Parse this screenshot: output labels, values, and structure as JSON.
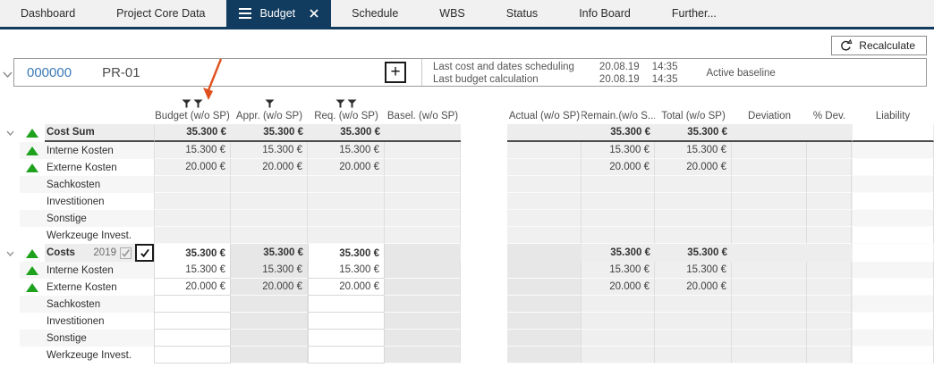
{
  "colors": {
    "accent": "#113c5f",
    "link_blue": "#3a79b8",
    "trend_green": "#1ea21e",
    "annotation_arrow": "#e0501f"
  },
  "tabs": {
    "items": [
      {
        "label": "Dashboard",
        "active": false
      },
      {
        "label": "Project Core Data",
        "active": false
      },
      {
        "label": "Budget",
        "active": true
      },
      {
        "label": "Schedule",
        "active": false
      },
      {
        "label": "WBS",
        "active": false
      },
      {
        "label": "Status",
        "active": false
      },
      {
        "label": "Info Board",
        "active": false
      },
      {
        "label": "Further...",
        "active": false
      }
    ]
  },
  "toolbar": {
    "recalculate_label": "Recalculate"
  },
  "project_header": {
    "id": "000000",
    "code": "PR-01",
    "add_button": "+",
    "info": [
      {
        "label": "Last cost and dates scheduling",
        "date": "20.08.19",
        "time": "14:35"
      },
      {
        "label": "Last budget calculation",
        "date": "20.08.19",
        "time": "14:35"
      }
    ],
    "baseline": "Active baseline"
  },
  "table": {
    "columns": [
      {
        "key": "budget",
        "label": "Budget (w/o SP)",
        "filters": 2
      },
      {
        "key": "appr",
        "label": "Appr. (w/o SP)",
        "filters": 1
      },
      {
        "key": "req",
        "label": "Req. (w/o SP)",
        "filters": 2
      },
      {
        "key": "basel",
        "label": "Basel. (w/o SP)",
        "filters": 0
      },
      {
        "key": "gap",
        "label": "",
        "filters": 0
      },
      {
        "key": "actual",
        "label": "Actual (w/o SP)",
        "filters": 0
      },
      {
        "key": "remain",
        "label": "Remain.(w/o S...",
        "filters": 0
      },
      {
        "key": "total",
        "label": "Total (w/o SP)",
        "filters": 0
      },
      {
        "key": "deviation",
        "label": "Deviation",
        "filters": 0
      },
      {
        "key": "pdev",
        "label": "% Dev.",
        "filters": 0
      },
      {
        "key": "liability",
        "label": "Liability",
        "filters": 0
      }
    ],
    "groups": [
      {
        "label": "Cost Sum",
        "year": "",
        "has_checkboxes": false,
        "trend": true,
        "values": {
          "budget": "35.300 €",
          "appr": "35.300 €",
          "req": "35.300 €",
          "basel": "",
          "actual": "",
          "remain": "35.300 €",
          "total": "35.300 €",
          "deviation": "",
          "pdev": "",
          "liability": ""
        },
        "rows": [
          {
            "label": "Interne Kosten",
            "trend": true,
            "budget": "15.300 €",
            "appr": "15.300 €",
            "req": "15.300 €",
            "basel": "",
            "actual": "",
            "remain": "15.300 €",
            "total": "15.300 €",
            "deviation": "",
            "pdev": "",
            "liability": ""
          },
          {
            "label": "Externe Kosten",
            "trend": true,
            "budget": "20.000 €",
            "appr": "20.000 €",
            "req": "20.000 €",
            "basel": "",
            "actual": "",
            "remain": "20.000 €",
            "total": "20.000 €",
            "deviation": "",
            "pdev": "",
            "liability": ""
          },
          {
            "label": "Sachkosten",
            "trend": false,
            "budget": "",
            "appr": "",
            "req": "",
            "basel": "",
            "actual": "",
            "remain": "",
            "total": "",
            "deviation": "",
            "pdev": "",
            "liability": ""
          },
          {
            "label": "Investitionen",
            "trend": false,
            "budget": "",
            "appr": "",
            "req": "",
            "basel": "",
            "actual": "",
            "remain": "",
            "total": "",
            "deviation": "",
            "pdev": "",
            "liability": ""
          },
          {
            "label": "Sonstige",
            "trend": false,
            "budget": "",
            "appr": "",
            "req": "",
            "basel": "",
            "actual": "",
            "remain": "",
            "total": "",
            "deviation": "",
            "pdev": "",
            "liability": ""
          },
          {
            "label": "Werkzeuge Invest.",
            "trend": false,
            "budget": "",
            "appr": "",
            "req": "",
            "basel": "",
            "actual": "",
            "remain": "",
            "total": "",
            "deviation": "",
            "pdev": "",
            "liability": ""
          }
        ]
      },
      {
        "label": "Costs",
        "year": "2019",
        "has_checkboxes": true,
        "trend": true,
        "values": {
          "budget": "35.300 €",
          "appr": "35.300 €",
          "req": "35.300 €",
          "basel": "",
          "actual": "",
          "remain": "35.300 €",
          "total": "35.300 €",
          "deviation": "",
          "pdev": "",
          "liability": ""
        },
        "rows": [
          {
            "label": "Interne Kosten",
            "trend": true,
            "budget": "15.300 €",
            "appr": "15.300 €",
            "req": "15.300 €",
            "basel": "",
            "actual": "",
            "remain": "15.300 €",
            "total": "15.300 €",
            "deviation": "",
            "pdev": "",
            "liability": ""
          },
          {
            "label": "Externe Kosten",
            "trend": true,
            "budget": "20.000 €",
            "appr": "20.000 €",
            "req": "20.000 €",
            "basel": "",
            "actual": "",
            "remain": "20.000 €",
            "total": "20.000 €",
            "deviation": "",
            "pdev": "",
            "liability": ""
          },
          {
            "label": "Sachkosten",
            "trend": false,
            "budget": "",
            "appr": "",
            "req": "",
            "basel": "",
            "actual": "",
            "remain": "",
            "total": "",
            "deviation": "",
            "pdev": "",
            "liability": ""
          },
          {
            "label": "Investitionen",
            "trend": false,
            "budget": "",
            "appr": "",
            "req": "",
            "basel": "",
            "actual": "",
            "remain": "",
            "total": "",
            "deviation": "",
            "pdev": "",
            "liability": ""
          },
          {
            "label": "Sonstige",
            "trend": false,
            "budget": "",
            "appr": "",
            "req": "",
            "basel": "",
            "actual": "",
            "remain": "",
            "total": "",
            "deviation": "",
            "pdev": "",
            "liability": ""
          },
          {
            "label": "Werkzeuge Invest.",
            "trend": false,
            "budget": "",
            "appr": "",
            "req": "",
            "basel": "",
            "actual": "",
            "remain": "",
            "total": "",
            "deviation": "",
            "pdev": "",
            "liability": ""
          }
        ]
      }
    ]
  }
}
